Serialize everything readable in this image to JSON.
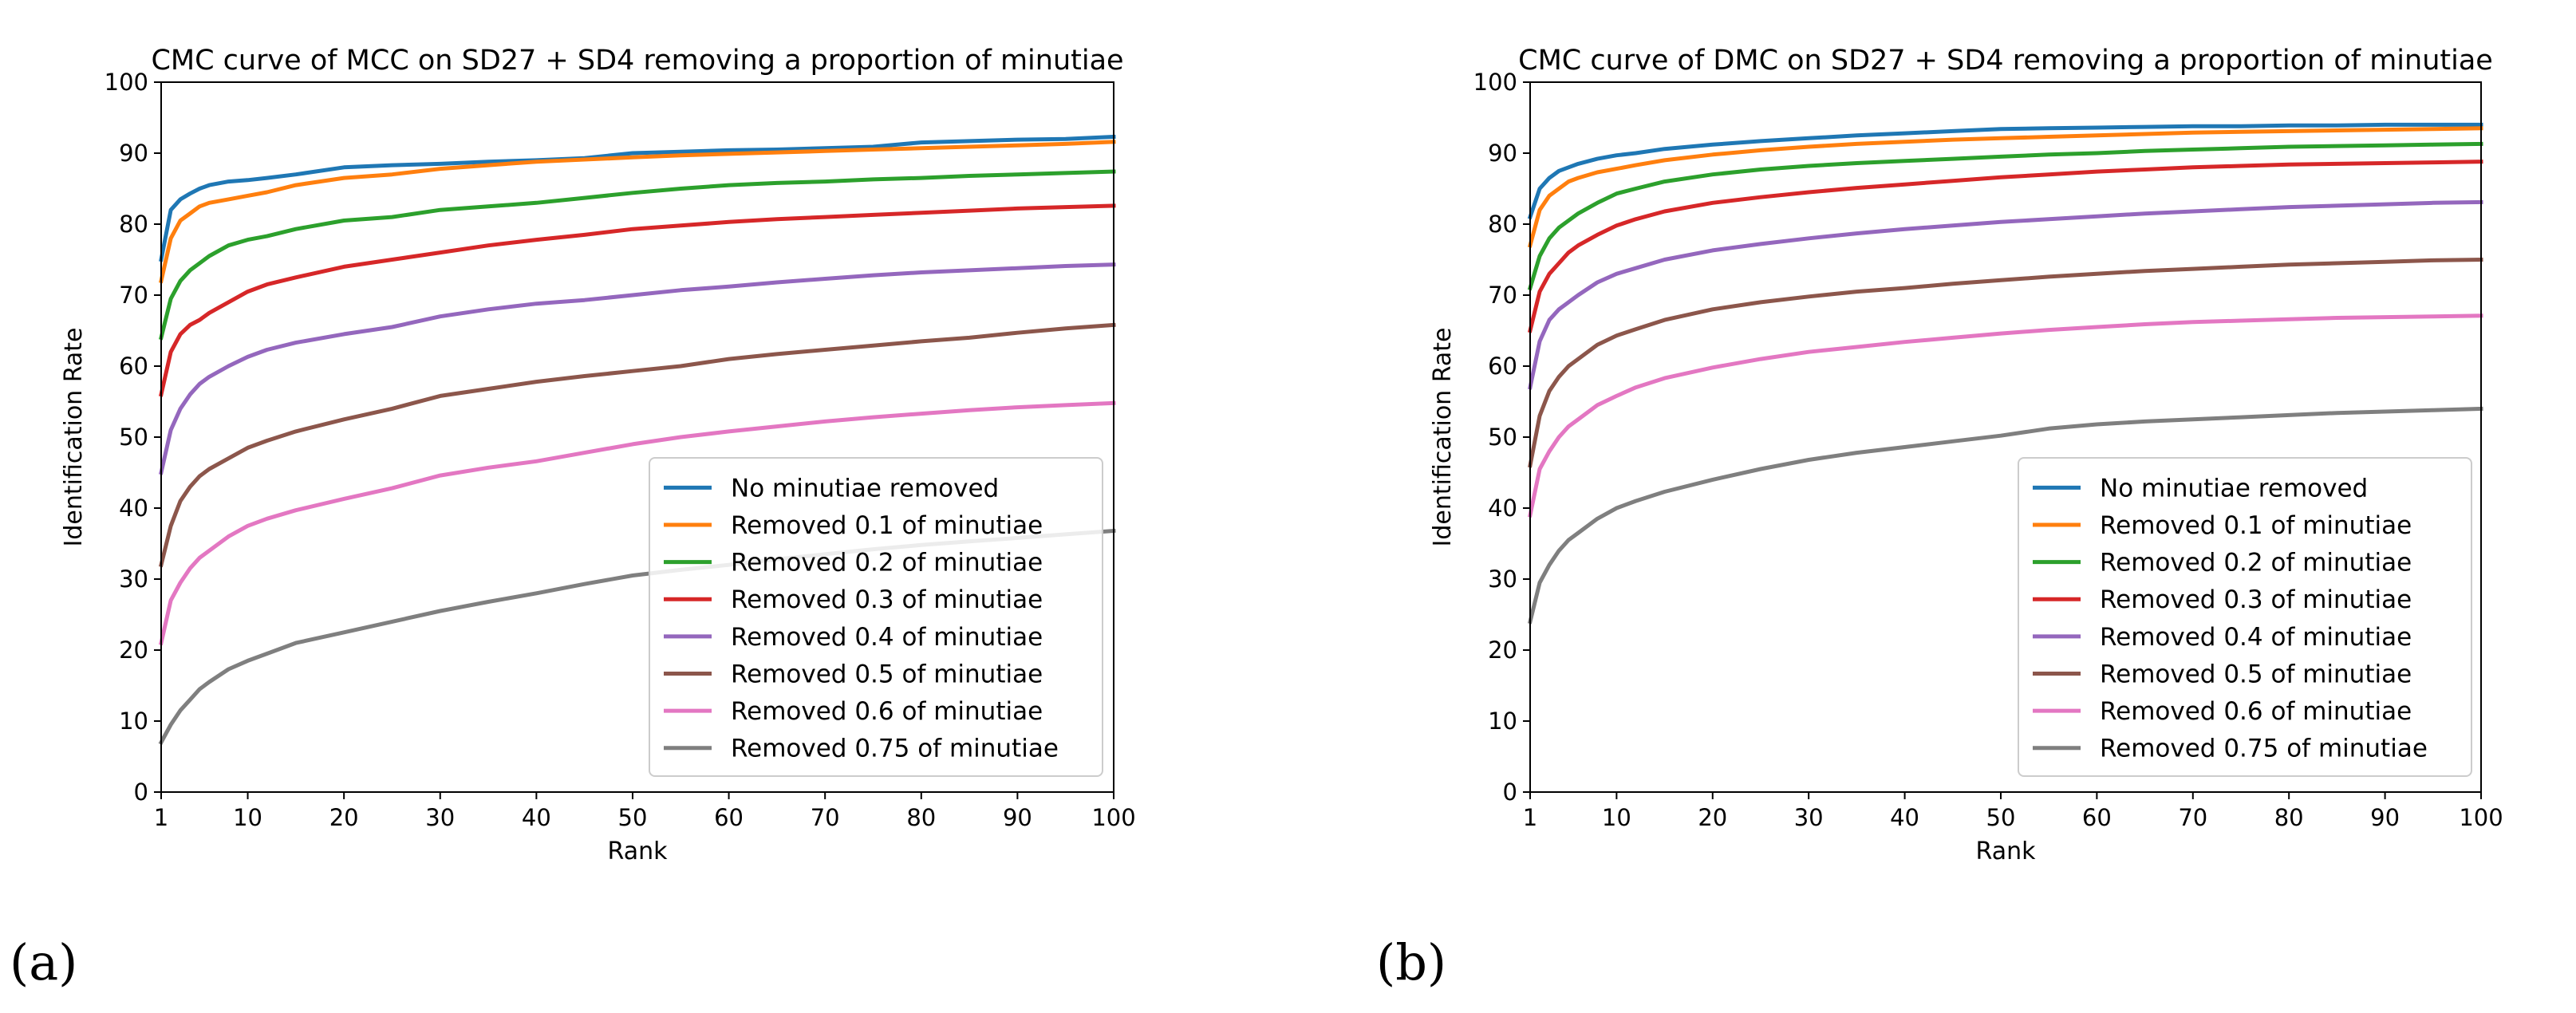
{
  "chart_data": [
    {
      "type": "line",
      "panel_label": "(a)",
      "title": "CMC curve of MCC on SD27 + SD4 removing a proportion of minutiae",
      "xlabel": "Rank",
      "ylabel": "Identification Rate",
      "xlim": [
        1,
        100
      ],
      "ylim": [
        0,
        100
      ],
      "xticks": [
        1,
        10,
        20,
        30,
        40,
        50,
        60,
        70,
        80,
        90,
        100
      ],
      "yticks": [
        0,
        10,
        20,
        30,
        40,
        50,
        60,
        70,
        80,
        90,
        100
      ],
      "grid": false,
      "legend": "lower right",
      "x": [
        1,
        2,
        3,
        4,
        5,
        6,
        8,
        10,
        12,
        15,
        20,
        25,
        30,
        35,
        40,
        45,
        50,
        55,
        60,
        65,
        70,
        75,
        80,
        85,
        90,
        95,
        100
      ],
      "series": [
        {
          "name": "No minutiae removed",
          "color": "#1f77b4",
          "values": [
            75.0,
            82.0,
            83.5,
            84.3,
            85.0,
            85.5,
            86.0,
            86.2,
            86.5,
            87.0,
            88.0,
            88.3,
            88.5,
            88.8,
            89.0,
            89.3,
            90.0,
            90.2,
            90.4,
            90.5,
            90.7,
            90.9,
            91.5,
            91.7,
            91.9,
            92.0,
            92.3
          ]
        },
        {
          "name": "Removed 0.1 of minutiae",
          "color": "#ff7f0e",
          "values": [
            72.0,
            78.0,
            80.5,
            81.5,
            82.5,
            83.0,
            83.5,
            84.0,
            84.5,
            85.5,
            86.5,
            87.0,
            87.8,
            88.3,
            88.8,
            89.1,
            89.4,
            89.7,
            89.9,
            90.1,
            90.3,
            90.5,
            90.7,
            90.9,
            91.1,
            91.3,
            91.6
          ]
        },
        {
          "name": "Removed 0.2 of minutiae",
          "color": "#2ca02c",
          "values": [
            64.0,
            69.5,
            72.0,
            73.5,
            74.5,
            75.5,
            77.0,
            77.8,
            78.3,
            79.3,
            80.5,
            81.0,
            82.0,
            82.5,
            83.0,
            83.7,
            84.4,
            85.0,
            85.5,
            85.8,
            86.0,
            86.3,
            86.5,
            86.8,
            87.0,
            87.2,
            87.4
          ]
        },
        {
          "name": "Removed 0.3 of minutiae",
          "color": "#d62728",
          "values": [
            56.0,
            62.0,
            64.5,
            65.8,
            66.5,
            67.5,
            69.0,
            70.5,
            71.5,
            72.5,
            74.0,
            75.0,
            76.0,
            77.0,
            77.8,
            78.5,
            79.3,
            79.8,
            80.3,
            80.7,
            81.0,
            81.3,
            81.6,
            81.9,
            82.2,
            82.4,
            82.6
          ]
        },
        {
          "name": "Removed 0.4 of minutiae",
          "color": "#9467bd",
          "values": [
            45.0,
            51.0,
            54.0,
            56.0,
            57.5,
            58.5,
            60.0,
            61.3,
            62.3,
            63.3,
            64.5,
            65.5,
            67.0,
            68.0,
            68.8,
            69.3,
            70.0,
            70.7,
            71.2,
            71.8,
            72.3,
            72.8,
            73.2,
            73.5,
            73.8,
            74.1,
            74.3
          ]
        },
        {
          "name": "Removed 0.5 of minutiae",
          "color": "#8c564b",
          "values": [
            32.0,
            37.5,
            41.0,
            43.0,
            44.5,
            45.5,
            47.0,
            48.5,
            49.5,
            50.8,
            52.5,
            54.0,
            55.8,
            56.8,
            57.8,
            58.6,
            59.3,
            60.0,
            61.0,
            61.7,
            62.3,
            62.9,
            63.5,
            64.0,
            64.7,
            65.3,
            65.8
          ]
        },
        {
          "name": "Removed 0.6 of minutiae",
          "color": "#e377c2",
          "values": [
            21.0,
            27.0,
            29.5,
            31.5,
            33.0,
            34.0,
            36.0,
            37.5,
            38.5,
            39.7,
            41.3,
            42.8,
            44.6,
            45.7,
            46.6,
            47.8,
            49.0,
            50.0,
            50.8,
            51.5,
            52.2,
            52.8,
            53.3,
            53.8,
            54.2,
            54.5,
            54.8
          ]
        },
        {
          "name": "Removed 0.75 of minutiae",
          "color": "#7f7f7f",
          "values": [
            7.0,
            9.5,
            11.5,
            13.0,
            14.5,
            15.5,
            17.3,
            18.5,
            19.5,
            21.0,
            22.5,
            24.0,
            25.5,
            26.8,
            28.0,
            29.3,
            30.5,
            31.3,
            32.0,
            32.8,
            33.5,
            34.2,
            34.8,
            35.3,
            35.8,
            36.3,
            36.8
          ]
        }
      ]
    },
    {
      "type": "line",
      "panel_label": "(b)",
      "title": "CMC curve of DMC on SD27 + SD4 removing a proportion of minutiae",
      "xlabel": "Rank",
      "ylabel": "Identification Rate",
      "xlim": [
        1,
        100
      ],
      "ylim": [
        0,
        100
      ],
      "xticks": [
        1,
        10,
        20,
        30,
        40,
        50,
        60,
        70,
        80,
        90,
        100
      ],
      "yticks": [
        0,
        10,
        20,
        30,
        40,
        50,
        60,
        70,
        80,
        90,
        100
      ],
      "grid": false,
      "legend": "lower right",
      "x": [
        1,
        2,
        3,
        4,
        5,
        6,
        8,
        10,
        12,
        15,
        20,
        25,
        30,
        35,
        40,
        45,
        50,
        55,
        60,
        65,
        70,
        75,
        80,
        85,
        90,
        95,
        100
      ],
      "series": [
        {
          "name": "No minutiae removed",
          "color": "#1f77b4",
          "values": [
            81.0,
            85.0,
            86.5,
            87.5,
            88.0,
            88.5,
            89.2,
            89.7,
            90.0,
            90.6,
            91.2,
            91.7,
            92.1,
            92.5,
            92.8,
            93.1,
            93.4,
            93.5,
            93.6,
            93.7,
            93.8,
            93.8,
            93.9,
            93.9,
            94.0,
            94.0,
            94.0
          ]
        },
        {
          "name": "Removed 0.1 of minutiae",
          "color": "#ff7f0e",
          "values": [
            77.0,
            82.0,
            84.0,
            85.0,
            86.0,
            86.5,
            87.3,
            87.8,
            88.3,
            89.0,
            89.8,
            90.4,
            90.9,
            91.3,
            91.6,
            91.9,
            92.1,
            92.3,
            92.5,
            92.7,
            92.9,
            93.0,
            93.1,
            93.2,
            93.3,
            93.4,
            93.5
          ]
        },
        {
          "name": "Removed 0.2 of minutiae",
          "color": "#2ca02c",
          "values": [
            71.0,
            75.5,
            78.0,
            79.5,
            80.5,
            81.5,
            83.0,
            84.3,
            85.0,
            86.0,
            87.0,
            87.7,
            88.2,
            88.6,
            88.9,
            89.2,
            89.5,
            89.8,
            90.0,
            90.3,
            90.5,
            90.7,
            90.9,
            91.0,
            91.1,
            91.2,
            91.3
          ]
        },
        {
          "name": "Removed 0.3 of minutiae",
          "color": "#d62728",
          "values": [
            65.0,
            70.5,
            73.0,
            74.5,
            76.0,
            77.0,
            78.5,
            79.8,
            80.7,
            81.8,
            83.0,
            83.8,
            84.5,
            85.1,
            85.6,
            86.1,
            86.6,
            87.0,
            87.4,
            87.7,
            88.0,
            88.2,
            88.4,
            88.5,
            88.6,
            88.7,
            88.8
          ]
        },
        {
          "name": "Removed 0.4 of minutiae",
          "color": "#9467bd",
          "values": [
            57.0,
            63.5,
            66.5,
            68.0,
            69.0,
            70.0,
            71.8,
            73.0,
            73.8,
            75.0,
            76.3,
            77.2,
            78.0,
            78.7,
            79.3,
            79.8,
            80.3,
            80.7,
            81.1,
            81.5,
            81.8,
            82.1,
            82.4,
            82.6,
            82.8,
            83.0,
            83.1
          ]
        },
        {
          "name": "Removed 0.5 of minutiae",
          "color": "#8c564b",
          "values": [
            46.0,
            53.0,
            56.5,
            58.5,
            60.0,
            61.0,
            63.0,
            64.3,
            65.2,
            66.5,
            68.0,
            69.0,
            69.8,
            70.5,
            71.0,
            71.6,
            72.1,
            72.6,
            73.0,
            73.4,
            73.7,
            74.0,
            74.3,
            74.5,
            74.7,
            74.9,
            75.0
          ]
        },
        {
          "name": "Removed 0.6 of minutiae",
          "color": "#e377c2",
          "values": [
            39.0,
            45.5,
            48.0,
            50.0,
            51.5,
            52.5,
            54.5,
            55.8,
            57.0,
            58.3,
            59.8,
            61.0,
            62.0,
            62.7,
            63.4,
            64.0,
            64.6,
            65.1,
            65.5,
            65.9,
            66.2,
            66.4,
            66.6,
            66.8,
            66.9,
            67.0,
            67.1
          ]
        },
        {
          "name": "Removed 0.75 of minutiae",
          "color": "#7f7f7f",
          "values": [
            24.0,
            29.5,
            32.0,
            34.0,
            35.5,
            36.5,
            38.5,
            40.0,
            41.0,
            42.3,
            44.0,
            45.5,
            46.8,
            47.8,
            48.6,
            49.4,
            50.2,
            51.2,
            51.8,
            52.2,
            52.5,
            52.8,
            53.1,
            53.4,
            53.6,
            53.8,
            54.0
          ]
        }
      ]
    }
  ]
}
